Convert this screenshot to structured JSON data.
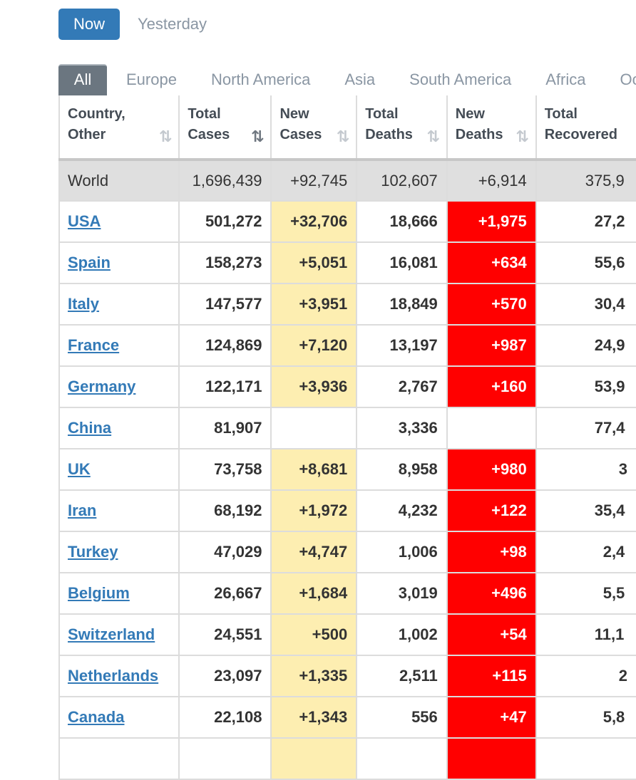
{
  "toggle": {
    "now": "Now",
    "yesterday": "Yesterday"
  },
  "tabs": [
    "All",
    "Europe",
    "North America",
    "Asia",
    "South America",
    "Africa",
    "Oceania"
  ],
  "columns": [
    {
      "line1": "Country,",
      "line2": "Other",
      "sort": "⇅"
    },
    {
      "line1": "Total",
      "line2": "Cases",
      "sort": "⇅"
    },
    {
      "line1": "New",
      "line2": "Cases",
      "sort": "⇅"
    },
    {
      "line1": "Total",
      "line2": "Deaths",
      "sort": "⇅"
    },
    {
      "line1": "New",
      "line2": "Deaths",
      "sort": "⇅"
    },
    {
      "line1": "Total",
      "line2": "Recovered",
      "sort": ""
    }
  ],
  "world": {
    "name": "World",
    "total_cases": "1,696,439",
    "new_cases": "+92,745",
    "total_deaths": "102,607",
    "new_deaths": "+6,914",
    "total_recovered": "375,9"
  },
  "rows": [
    {
      "name": "USA",
      "total_cases": "501,272",
      "new_cases": "+32,706",
      "total_deaths": "18,666",
      "new_deaths": "+1,975",
      "total_recovered": "27,2"
    },
    {
      "name": "Spain",
      "total_cases": "158,273",
      "new_cases": "+5,051",
      "total_deaths": "16,081",
      "new_deaths": "+634",
      "total_recovered": "55,6"
    },
    {
      "name": "Italy",
      "total_cases": "147,577",
      "new_cases": "+3,951",
      "total_deaths": "18,849",
      "new_deaths": "+570",
      "total_recovered": "30,4"
    },
    {
      "name": "France",
      "total_cases": "124,869",
      "new_cases": "+7,120",
      "total_deaths": "13,197",
      "new_deaths": "+987",
      "total_recovered": "24,9"
    },
    {
      "name": "Germany",
      "total_cases": "122,171",
      "new_cases": "+3,936",
      "total_deaths": "2,767",
      "new_deaths": "+160",
      "total_recovered": "53,9"
    },
    {
      "name": "China",
      "total_cases": "81,907",
      "new_cases": "",
      "total_deaths": "3,336",
      "new_deaths": "",
      "total_recovered": "77,4"
    },
    {
      "name": "UK",
      "total_cases": "73,758",
      "new_cases": "+8,681",
      "total_deaths": "8,958",
      "new_deaths": "+980",
      "total_recovered": "3"
    },
    {
      "name": "Iran",
      "total_cases": "68,192",
      "new_cases": "+1,972",
      "total_deaths": "4,232",
      "new_deaths": "+122",
      "total_recovered": "35,4"
    },
    {
      "name": "Turkey",
      "total_cases": "47,029",
      "new_cases": "+4,747",
      "total_deaths": "1,006",
      "new_deaths": "+98",
      "total_recovered": "2,4"
    },
    {
      "name": "Belgium",
      "total_cases": "26,667",
      "new_cases": "+1,684",
      "total_deaths": "3,019",
      "new_deaths": "+496",
      "total_recovered": "5,5"
    },
    {
      "name": "Switzerland",
      "total_cases": "24,551",
      "new_cases": "+500",
      "total_deaths": "1,002",
      "new_deaths": "+54",
      "total_recovered": "11,1"
    },
    {
      "name": "Netherlands",
      "total_cases": "23,097",
      "new_cases": "+1,335",
      "total_deaths": "2,511",
      "new_deaths": "+115",
      "total_recovered": "2"
    },
    {
      "name": "Canada",
      "total_cases": "22,108",
      "new_cases": "+1,343",
      "total_deaths": "556",
      "new_deaths": "+47",
      "total_recovered": "5,8"
    },
    {
      "name": "",
      "total_cases": "",
      "new_cases": "",
      "total_deaths": "",
      "new_deaths": "",
      "total_recovered": ""
    }
  ],
  "colors": {
    "accent": "#337ab7",
    "new_cases_bg": "#fdeeb1",
    "new_deaths_bg": "#ff0000",
    "world_row_bg": "#dfdfdf"
  }
}
